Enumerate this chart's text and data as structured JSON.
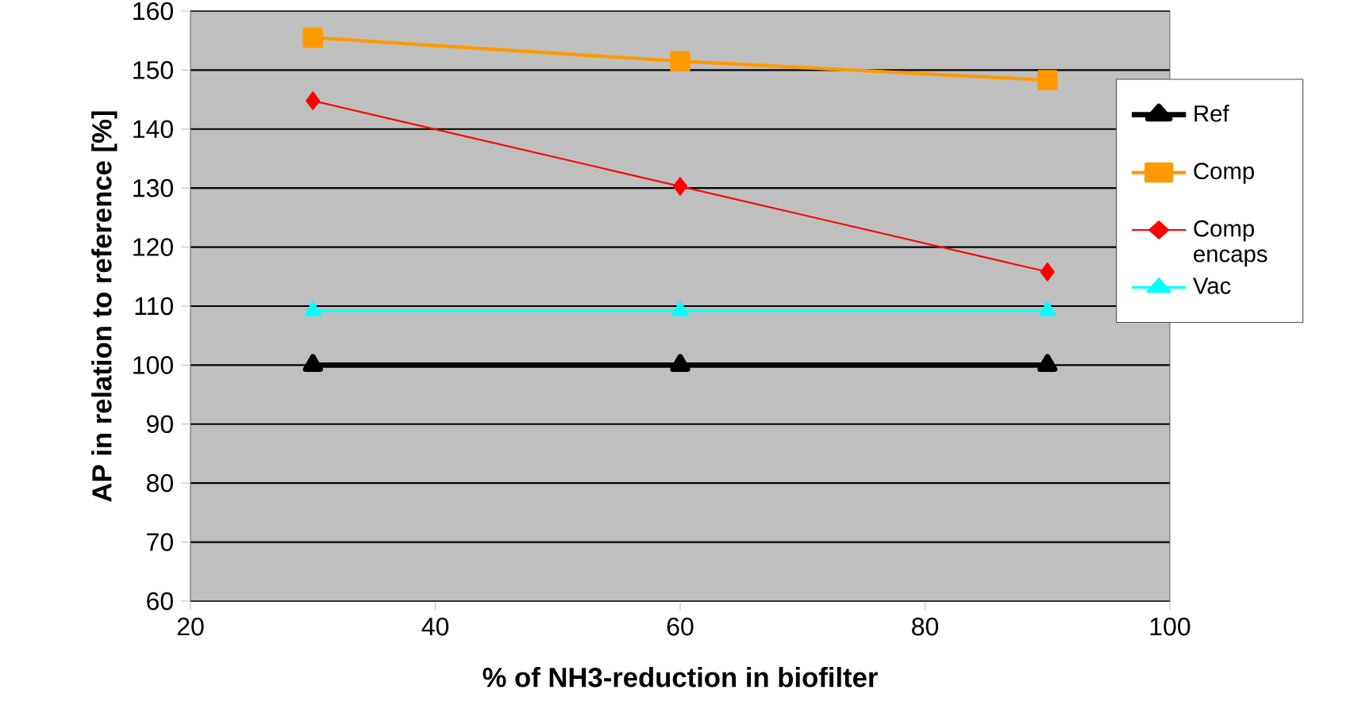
{
  "chart_data": {
    "type": "line",
    "xlabel": "% of NH3-reduction in biofilter",
    "ylabel": "AP in relation to reference [%]",
    "x": [
      30,
      60,
      90
    ],
    "series": [
      {
        "name": "Ref",
        "color": "#000000",
        "marker": "triangle",
        "values": [
          100,
          100,
          100
        ]
      },
      {
        "name": "Comp",
        "color": "#ff9900",
        "marker": "square",
        "values": [
          155.5,
          151.5,
          148.3
        ]
      },
      {
        "name": "Comp encaps",
        "color": "#ff0000",
        "marker": "diamond",
        "values": [
          144.8,
          130.3,
          115.8
        ]
      },
      {
        "name": "Vac",
        "color": "#00ffff",
        "marker": "triangle",
        "values": [
          109.2,
          109.2,
          109.2
        ]
      }
    ],
    "xlim": [
      20,
      100
    ],
    "xticks": [
      20,
      40,
      60,
      80,
      100
    ],
    "ylim": [
      60,
      160
    ],
    "yticks": [
      60,
      70,
      80,
      90,
      100,
      110,
      120,
      130,
      140,
      150,
      160
    ],
    "grid": "y",
    "legend": "right",
    "line_style": "solid"
  }
}
